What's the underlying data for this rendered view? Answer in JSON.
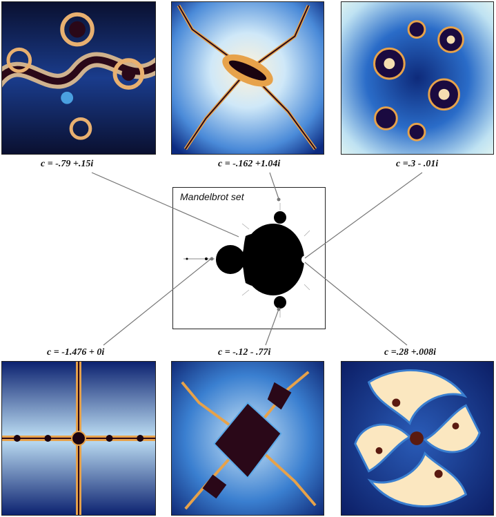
{
  "center": {
    "title": "Mandelbrot set"
  },
  "julia_sets": [
    {
      "id": "top-left",
      "label": "c = -.79 +.15i"
    },
    {
      "id": "top-center",
      "label": "c = -.162 +1.04i"
    },
    {
      "id": "top-right",
      "label": "c =.3 - .01i"
    },
    {
      "id": "bottom-left",
      "label": "c = -1.476 + 0i"
    },
    {
      "id": "bottom-center",
      "label": "c = -.12 - .77i"
    },
    {
      "id": "bottom-right",
      "label": "c =.28 +.008i"
    }
  ],
  "colors": {
    "deep_blue": "#0b1a5a",
    "mid_blue": "#3a7fd0",
    "light_blue": "#cfe7f7",
    "cream": "#fff3d6",
    "orange": "#e7a24a",
    "dark": "#1a0410",
    "line": "#777777"
  }
}
